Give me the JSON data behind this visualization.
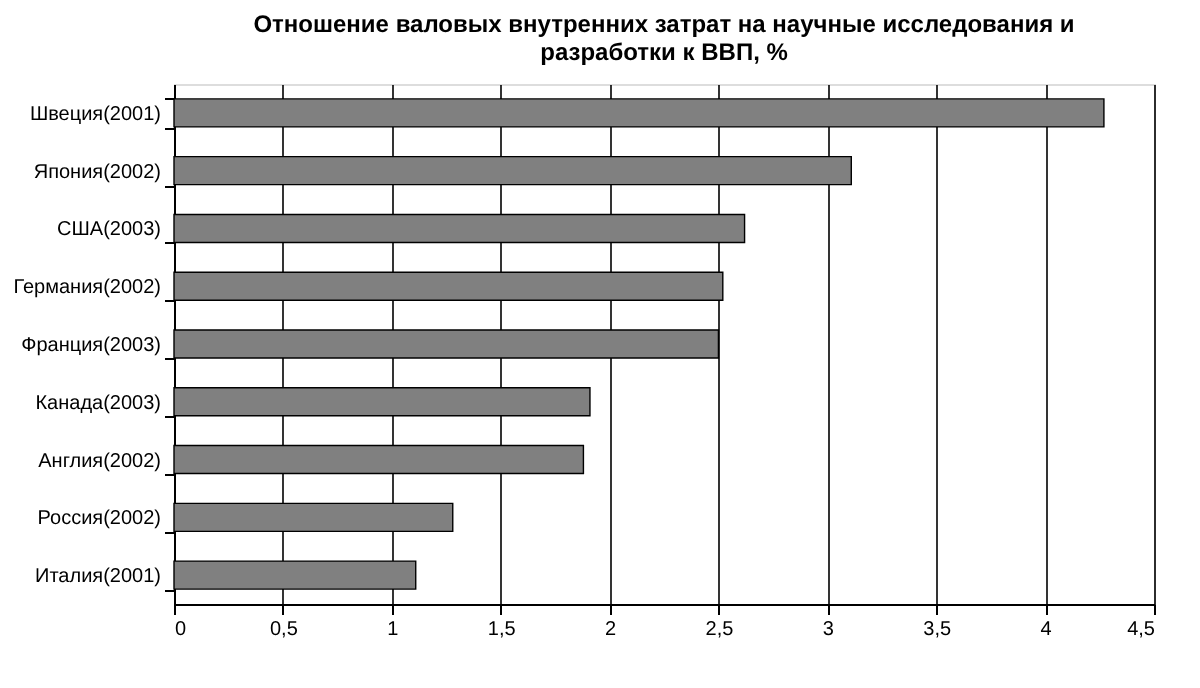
{
  "chart_data": {
    "type": "bar",
    "orientation": "horizontal",
    "title": [
      "Отношение валовых внутренних затрат на научные исследования и",
      "разработки к ВВП, %"
    ],
    "categories": [
      "Швеция(2001)",
      "Япония(2002)",
      "США(2003)",
      "Германия(2002)",
      "Франция(2003)",
      "Канада(2003)",
      "Англия(2002)",
      "Россия(2002)",
      "Италия(2001)"
    ],
    "values": [
      4.27,
      3.11,
      2.62,
      2.52,
      2.5,
      1.91,
      1.88,
      1.28,
      1.11
    ],
    "color": "#808080",
    "xlim": [
      0,
      4.5
    ],
    "xticks": [
      0,
      {
        "value": 0.5,
        "label": "0,5"
      },
      1,
      {
        "value": 1.5,
        "label": "1,5"
      },
      2,
      {
        "value": 2.5,
        "label": "2,5"
      },
      3,
      {
        "value": 3.5,
        "label": "3,5"
      },
      4,
      {
        "value": 4.5,
        "label": "4,5"
      }
    ],
    "grid": "x"
  }
}
